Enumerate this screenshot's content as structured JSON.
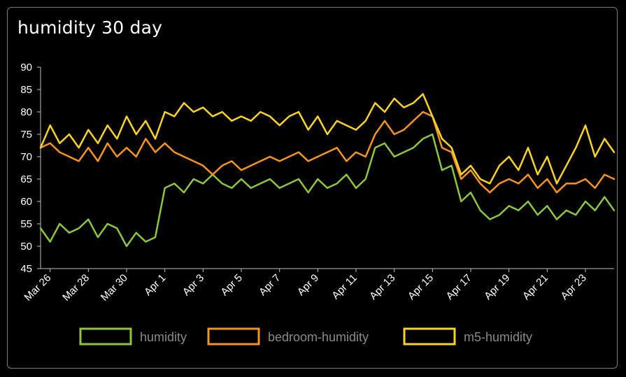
{
  "card": {
    "title": "humidity 30 day"
  },
  "chart_data": {
    "type": "line",
    "title": "humidity 30 day",
    "xlabel": "",
    "ylabel": "",
    "ylim": [
      45,
      90
    ],
    "yticks": [
      45,
      50,
      55,
      60,
      65,
      70,
      75,
      80,
      85,
      90
    ],
    "xlim": [
      "2025-03-25T12:00",
      "2025-04-24T12:00"
    ],
    "x_ticks": [
      {
        "date": "2025-03-26",
        "label": "Mar 26"
      },
      {
        "date": "2025-03-28",
        "label": "Mar 28"
      },
      {
        "date": "2025-03-30",
        "label": "Mar 30"
      },
      {
        "date": "2025-04-01",
        "label": "Apr 1"
      },
      {
        "date": "2025-04-03",
        "label": "Apr 3"
      },
      {
        "date": "2025-04-05",
        "label": "Apr 5"
      },
      {
        "date": "2025-04-07",
        "label": "Apr 7"
      },
      {
        "date": "2025-04-09",
        "label": "Apr 9"
      },
      {
        "date": "2025-04-11",
        "label": "Apr 11"
      },
      {
        "date": "2025-04-13",
        "label": "Apr 13"
      },
      {
        "date": "2025-04-15",
        "label": "Apr 15"
      },
      {
        "date": "2025-04-17",
        "label": "Apr 17"
      },
      {
        "date": "2025-04-19",
        "label": "Apr 19"
      },
      {
        "date": "2025-04-21",
        "label": "Apr 21"
      },
      {
        "date": "2025-04-23",
        "label": "Apr 23"
      }
    ],
    "grid": false,
    "legend_position": "bottom",
    "x": [
      "2025-03-25T12:00",
      "2025-03-26T00:00",
      "2025-03-26T12:00",
      "2025-03-27T00:00",
      "2025-03-27T12:00",
      "2025-03-28T00:00",
      "2025-03-28T12:00",
      "2025-03-29T00:00",
      "2025-03-29T12:00",
      "2025-03-30T00:00",
      "2025-03-30T12:00",
      "2025-03-31T00:00",
      "2025-03-31T12:00",
      "2025-04-01T00:00",
      "2025-04-01T12:00",
      "2025-04-02T00:00",
      "2025-04-02T12:00",
      "2025-04-03T00:00",
      "2025-04-03T12:00",
      "2025-04-04T00:00",
      "2025-04-04T12:00",
      "2025-04-05T00:00",
      "2025-04-05T12:00",
      "2025-04-06T00:00",
      "2025-04-06T12:00",
      "2025-04-07T00:00",
      "2025-04-07T12:00",
      "2025-04-08T00:00",
      "2025-04-08T12:00",
      "2025-04-09T00:00",
      "2025-04-09T12:00",
      "2025-04-10T00:00",
      "2025-04-10T12:00",
      "2025-04-11T00:00",
      "2025-04-11T12:00",
      "2025-04-12T00:00",
      "2025-04-12T12:00",
      "2025-04-13T00:00",
      "2025-04-13T12:00",
      "2025-04-14T00:00",
      "2025-04-14T12:00",
      "2025-04-15T00:00",
      "2025-04-15T12:00",
      "2025-04-16T00:00",
      "2025-04-16T12:00",
      "2025-04-17T00:00",
      "2025-04-17T12:00",
      "2025-04-18T00:00",
      "2025-04-18T12:00",
      "2025-04-19T00:00",
      "2025-04-19T12:00",
      "2025-04-20T00:00",
      "2025-04-20T12:00",
      "2025-04-21T00:00",
      "2025-04-21T12:00",
      "2025-04-22T00:00",
      "2025-04-22T12:00",
      "2025-04-23T00:00",
      "2025-04-23T12:00",
      "2025-04-24T00:00",
      "2025-04-24T12:00"
    ],
    "series": [
      {
        "name": "humidity",
        "color": "#8cc63f",
        "values": [
          54,
          51,
          55,
          53,
          54,
          56,
          52,
          55,
          54,
          50,
          53,
          51,
          52,
          63,
          64,
          62,
          65,
          64,
          66,
          64,
          63,
          65,
          63,
          64,
          65,
          63,
          64,
          65,
          62,
          65,
          63,
          64,
          66,
          63,
          65,
          72,
          73,
          70,
          71,
          72,
          74,
          75,
          67,
          68,
          60,
          62,
          58,
          56,
          57,
          59,
          58,
          60,
          57,
          59,
          56,
          58,
          57,
          60,
          58,
          61,
          58
        ]
      },
      {
        "name": "bedroom-humidity",
        "color": "#f7941d",
        "values": [
          72,
          73,
          71,
          70,
          69,
          72,
          69,
          73,
          70,
          72,
          70,
          74,
          71,
          73,
          71,
          70,
          69,
          68,
          66,
          68,
          69,
          67,
          68,
          69,
          70,
          69,
          70,
          71,
          69,
          70,
          71,
          72,
          69,
          71,
          70,
          75,
          78,
          75,
          76,
          78,
          80,
          79,
          72,
          71,
          65,
          67,
          64,
          62,
          64,
          65,
          64,
          66,
          63,
          65,
          62,
          64,
          64,
          65,
          63,
          66,
          65
        ]
      },
      {
        "name": "m5-humidity",
        "color": "#f9d423",
        "values": [
          72,
          77,
          73,
          75,
          72,
          76,
          73,
          77,
          74,
          79,
          75,
          78,
          74,
          80,
          79,
          82,
          80,
          81,
          79,
          80,
          78,
          79,
          78,
          80,
          79,
          77,
          79,
          80,
          76,
          79,
          75,
          78,
          77,
          76,
          78,
          82,
          80,
          83,
          81,
          82,
          84,
          79,
          74,
          72,
          66,
          68,
          65,
          64,
          68,
          70,
          67,
          72,
          66,
          70,
          64,
          68,
          72,
          77,
          70,
          74,
          71
        ]
      }
    ]
  }
}
